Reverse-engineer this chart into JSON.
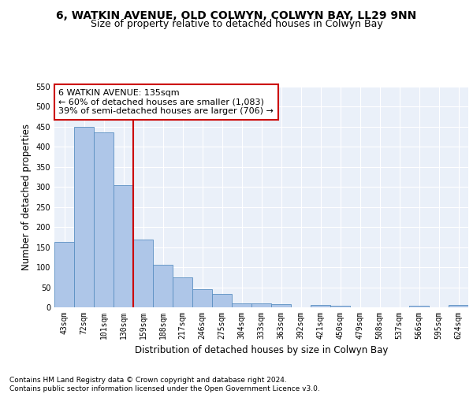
{
  "title_line1": "6, WATKIN AVENUE, OLD COLWYN, COLWYN BAY, LL29 9NN",
  "title_line2": "Size of property relative to detached houses in Colwyn Bay",
  "xlabel": "Distribution of detached houses by size in Colwyn Bay",
  "ylabel": "Number of detached properties",
  "categories": [
    "43sqm",
    "72sqm",
    "101sqm",
    "130sqm",
    "159sqm",
    "188sqm",
    "217sqm",
    "246sqm",
    "275sqm",
    "304sqm",
    "333sqm",
    "363sqm",
    "392sqm",
    "421sqm",
    "450sqm",
    "479sqm",
    "508sqm",
    "537sqm",
    "566sqm",
    "595sqm",
    "624sqm"
  ],
  "values": [
    163,
    450,
    437,
    305,
    168,
    106,
    75,
    45,
    33,
    10,
    10,
    8,
    0,
    5,
    4,
    0,
    0,
    0,
    3,
    0,
    5
  ],
  "bar_color": "#aec6e8",
  "bar_edge_color": "#5a8fc2",
  "vline_color": "#cc0000",
  "vline_pos": 3.5,
  "annotation_text": "6 WATKIN AVENUE: 135sqm\n← 60% of detached houses are smaller (1,083)\n39% of semi-detached houses are larger (706) →",
  "annotation_box_color": "#ffffff",
  "annotation_box_edge": "#cc0000",
  "ylim": [
    0,
    550
  ],
  "yticks": [
    0,
    50,
    100,
    150,
    200,
    250,
    300,
    350,
    400,
    450,
    500,
    550
  ],
  "footnote": "Contains HM Land Registry data © Crown copyright and database right 2024.\nContains public sector information licensed under the Open Government Licence v3.0.",
  "bg_color": "#eaf0f9",
  "grid_color": "#ffffff",
  "title_fontsize": 10,
  "subtitle_fontsize": 9,
  "axis_label_fontsize": 8.5,
  "tick_fontsize": 7,
  "annotation_fontsize": 8,
  "footnote_fontsize": 6.5
}
